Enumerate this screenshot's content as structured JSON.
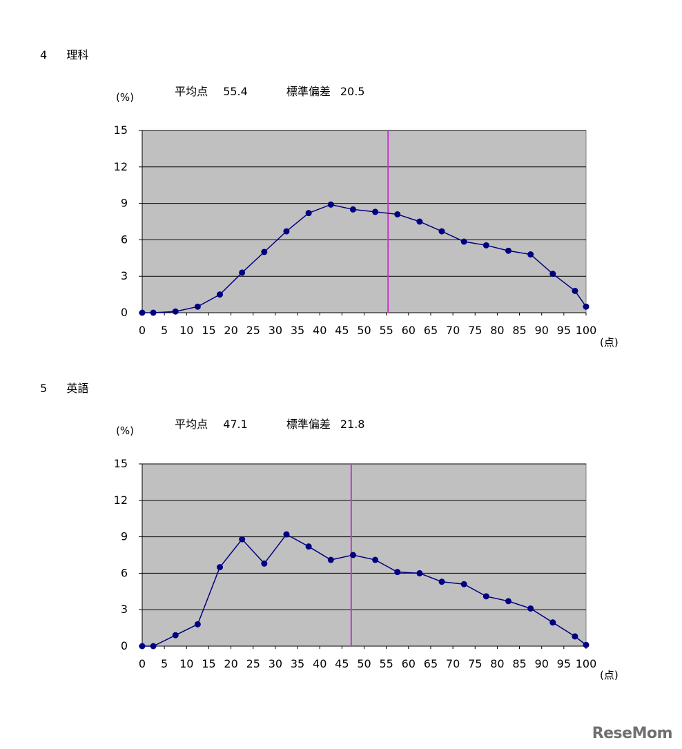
{
  "sections": [
    {
      "number": "4",
      "subject": "理科",
      "mean_label": "平均点",
      "mean_value": "55.4",
      "sd_label": "標準偏差",
      "sd_value": "20.5",
      "y_unit": "(%)",
      "x_unit": "(点)"
    },
    {
      "number": "5",
      "subject": "英語",
      "mean_label": "平均点",
      "mean_value": "47.1",
      "sd_label": "標準偏差",
      "sd_value": "21.8",
      "y_unit": "(%)",
      "x_unit": "(点)"
    }
  ],
  "chart_data": [
    {
      "type": "line",
      "title": "",
      "x_ticks": [
        0,
        5,
        10,
        15,
        20,
        25,
        30,
        35,
        40,
        45,
        50,
        55,
        60,
        65,
        70,
        75,
        80,
        85,
        90,
        95,
        100
      ],
      "y_ticks": [
        0,
        3,
        6,
        9,
        12,
        15
      ],
      "xlim": [
        0,
        100
      ],
      "ylim": [
        0,
        15
      ],
      "grid": "horizontal",
      "plot_bg": "#c0c0c0",
      "line_color": "#000080",
      "mean_line": {
        "x": 55.4,
        "color": "#cc33cc"
      },
      "x": [
        0,
        2.5,
        7.5,
        12.5,
        17.5,
        22.5,
        27.5,
        32.5,
        37.5,
        42.5,
        47.5,
        52.5,
        57.5,
        62.5,
        67.5,
        72.5,
        77.5,
        82.5,
        87.5,
        92.5,
        97.5,
        100
      ],
      "y": [
        0,
        0,
        0.1,
        0.5,
        1.5,
        3.3,
        5.0,
        6.7,
        8.2,
        8.9,
        8.5,
        8.3,
        8.1,
        7.5,
        6.7,
        5.85,
        5.55,
        5.1,
        4.8,
        3.2,
        1.8,
        0.5
      ]
    },
    {
      "type": "line",
      "title": "",
      "x_ticks": [
        0,
        5,
        10,
        15,
        20,
        25,
        30,
        35,
        40,
        45,
        50,
        55,
        60,
        65,
        70,
        75,
        80,
        85,
        90,
        95,
        100
      ],
      "y_ticks": [
        0,
        3,
        6,
        9,
        12,
        15
      ],
      "xlim": [
        0,
        100
      ],
      "ylim": [
        0,
        15
      ],
      "grid": "horizontal",
      "plot_bg": "#c0c0c0",
      "line_color": "#000080",
      "mean_line": {
        "x": 47.1,
        "color": "#cc33cc"
      },
      "x": [
        0,
        2.5,
        7.5,
        12.5,
        17.5,
        22.5,
        27.5,
        32.5,
        37.5,
        42.5,
        47.5,
        52.5,
        57.5,
        62.5,
        67.5,
        72.5,
        77.5,
        82.5,
        87.5,
        92.5,
        97.5,
        100
      ],
      "y": [
        0,
        0,
        0.9,
        1.8,
        6.5,
        8.8,
        6.8,
        9.2,
        8.2,
        7.1,
        7.5,
        7.1,
        6.1,
        6.0,
        5.3,
        5.1,
        4.1,
        3.7,
        3.1,
        1.95,
        0.8,
        0.1
      ]
    }
  ],
  "watermark": "ReseMom"
}
